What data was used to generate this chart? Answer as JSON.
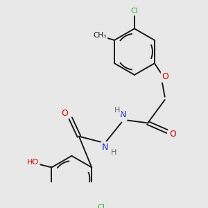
{
  "background_color": "#e8e8e8",
  "bond_color": "#1a1a1a",
  "atom_colors": {
    "Cl": "#33aa33",
    "O": "#cc0000",
    "N": "#1a1acc",
    "H": "#666666",
    "C": "#1a1a1a"
  },
  "figsize": [
    3.0,
    3.0
  ],
  "dpi": 100,
  "lw": 1.4
}
